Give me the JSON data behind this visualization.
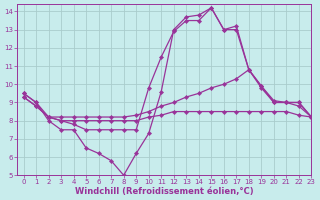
{
  "title": "",
  "xlabel": "Windchill (Refroidissement éolien,°C)",
  "ylabel": "",
  "bg_color": "#c8ecec",
  "line_color": "#993399",
  "grid_color": "#aacccc",
  "xlim": [
    -0.5,
    23
  ],
  "ylim": [
    5,
    14.4
  ],
  "xticks": [
    0,
    1,
    2,
    3,
    4,
    5,
    6,
    7,
    8,
    9,
    10,
    11,
    12,
    13,
    14,
    15,
    16,
    17,
    18,
    19,
    20,
    21,
    22,
    23
  ],
  "yticks": [
    5,
    6,
    7,
    8,
    9,
    10,
    11,
    12,
    13,
    14
  ],
  "line1_x": [
    0,
    1,
    2,
    3,
    4,
    5,
    6,
    7,
    8,
    9,
    10,
    11,
    12,
    13,
    14,
    15,
    16,
    17,
    18,
    19,
    20,
    21,
    22,
    23
  ],
  "line1_y": [
    9.5,
    9.0,
    8.0,
    7.5,
    7.5,
    6.5,
    6.2,
    5.8,
    5.0,
    6.2,
    7.3,
    9.6,
    13.0,
    13.7,
    13.8,
    14.2,
    13.0,
    13.2,
    10.8,
    9.9,
    9.0,
    9.0,
    9.0,
    8.2
  ],
  "line2_x": [
    0,
    1,
    2,
    3,
    4,
    5,
    6,
    7,
    8,
    9,
    10,
    11,
    12,
    13,
    14,
    15,
    16,
    17,
    18,
    19,
    20,
    21,
    22,
    23
  ],
  "line2_y": [
    9.3,
    8.8,
    8.2,
    8.2,
    8.2,
    8.2,
    8.2,
    8.2,
    8.2,
    8.3,
    8.5,
    8.8,
    9.0,
    9.3,
    9.5,
    9.8,
    10.0,
    10.3,
    10.8,
    9.8,
    9.0,
    9.0,
    8.8,
    8.2
  ],
  "line3_x": [
    0,
    1,
    2,
    3,
    4,
    5,
    6,
    7,
    8,
    9,
    10,
    11,
    12,
    13,
    14,
    15,
    16,
    17,
    18,
    19,
    20,
    21,
    22,
    23
  ],
  "line3_y": [
    9.5,
    9.0,
    8.2,
    8.0,
    7.8,
    7.5,
    7.5,
    7.5,
    7.5,
    7.5,
    9.8,
    11.5,
    12.9,
    13.5,
    13.5,
    14.2,
    13.0,
    13.0,
    10.8,
    9.9,
    9.1,
    9.0,
    9.0,
    8.2
  ],
  "line4_x": [
    0,
    1,
    2,
    3,
    4,
    5,
    6,
    7,
    8,
    9,
    10,
    11,
    12,
    13,
    14,
    15,
    16,
    17,
    18,
    19,
    20,
    21,
    22,
    23
  ],
  "line4_y": [
    9.3,
    8.8,
    8.2,
    8.0,
    8.0,
    8.0,
    8.0,
    8.0,
    8.0,
    8.0,
    8.2,
    8.3,
    8.5,
    8.5,
    8.5,
    8.5,
    8.5,
    8.5,
    8.5,
    8.5,
    8.5,
    8.5,
    8.3,
    8.2
  ],
  "marker": "D",
  "markersize": 2.2,
  "linewidth": 0.9,
  "tick_fontsize": 5.0,
  "label_fontsize": 6.0
}
